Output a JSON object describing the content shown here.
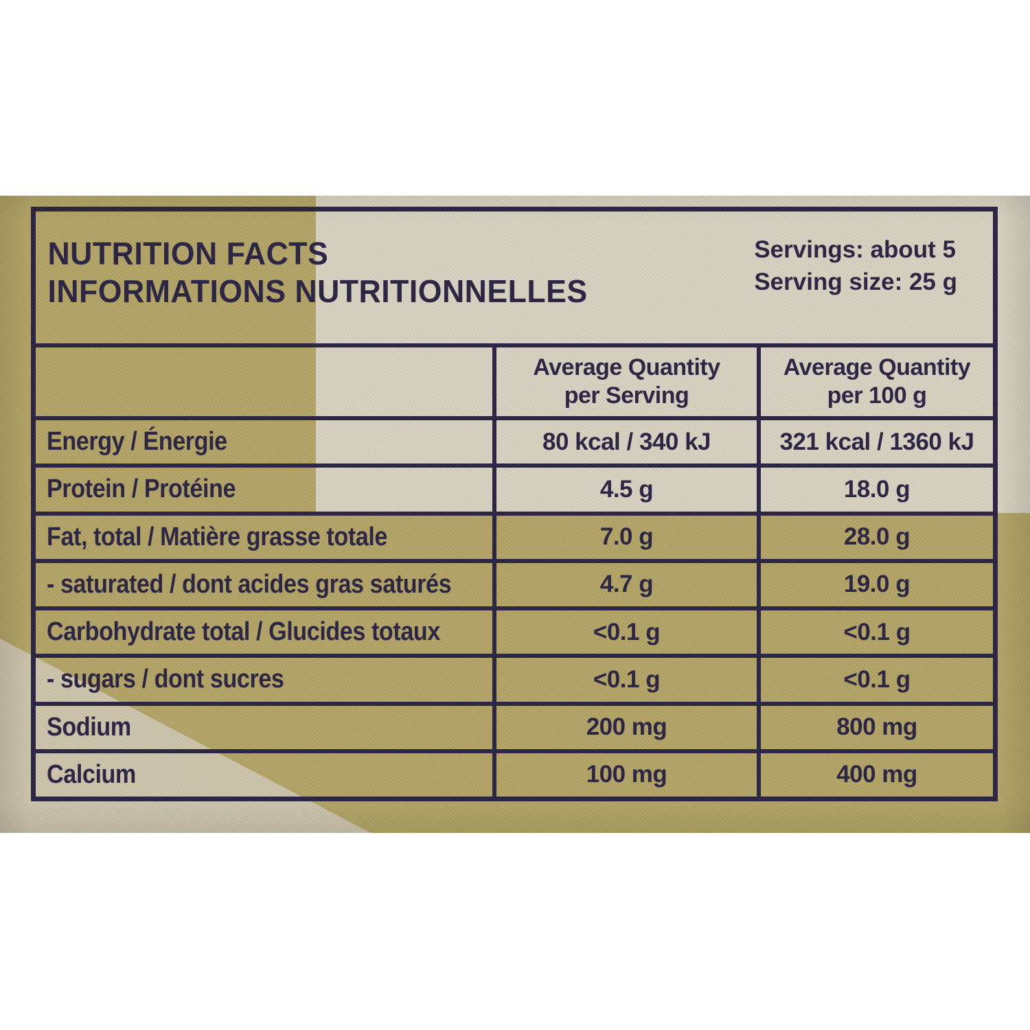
{
  "label_photo": {
    "colors": {
      "ink": "#211b3e",
      "khaki": "#b2a363",
      "cream": "#d9d3c4",
      "wedge": "#cec5ad",
      "page_background": "#ffffff"
    }
  },
  "table": {
    "title_line1": "NUTRITION FACTS",
    "title_line2": "INFORMATIONS NUTRITIONNELLES",
    "servings_line1": "Servings: about 5",
    "servings_line2": "Serving size: 25 g",
    "columns": [
      "",
      "Average Quantity per Serving",
      "Average Quantity per 100 g"
    ],
    "rows": [
      {
        "label": "Energy / Énergie",
        "per_serving": "80 kcal / 340 kJ",
        "per_100g": "321 kcal / 1360 kJ"
      },
      {
        "label": "Protein / Protéine",
        "per_serving": "4.5 g",
        "per_100g": "18.0 g"
      },
      {
        "label": "Fat, total / Matière grasse totale",
        "per_serving": "7.0 g",
        "per_100g": "28.0 g"
      },
      {
        "label": "- saturated / dont acides gras saturés",
        "per_serving": "4.7 g",
        "per_100g": "19.0 g"
      },
      {
        "label": "Carbohydrate total / Glucides totaux",
        "per_serving": "<0.1 g",
        "per_100g": "<0.1 g"
      },
      {
        "label": "- sugars / dont sucres",
        "per_serving": "<0.1 g",
        "per_100g": "<0.1 g"
      },
      {
        "label": "Sodium",
        "per_serving": "200 mg",
        "per_100g": "800 mg"
      },
      {
        "label": "Calcium",
        "per_serving": "100 mg",
        "per_100g": "400 mg"
      }
    ]
  }
}
